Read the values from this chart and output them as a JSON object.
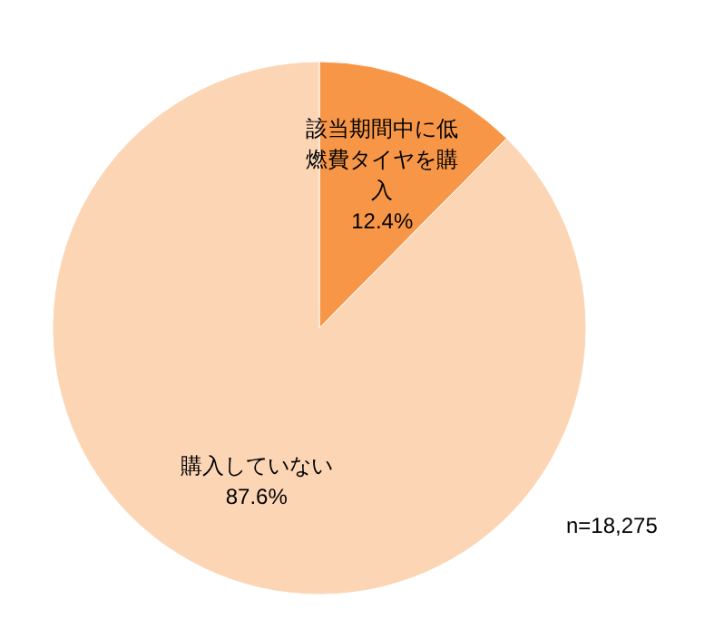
{
  "chart_data": {
    "type": "pie",
    "categories": [
      "該当期間中に低燃費タイヤを購入",
      "購入していない"
    ],
    "values": [
      12.4,
      87.6
    ],
    "colors": [
      "#f79646",
      "#fcd5b5"
    ],
    "value_labels": [
      "12.4%",
      "87.6%"
    ],
    "annotations": [
      "n=18,275"
    ]
  }
}
